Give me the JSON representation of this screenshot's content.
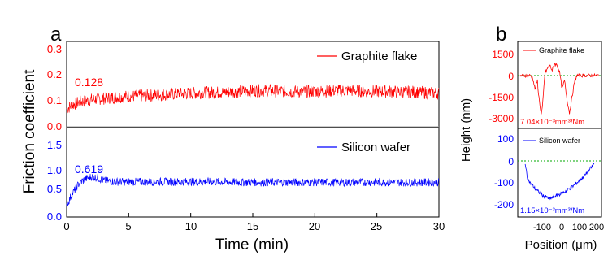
{
  "panel_a": {
    "letter": "a",
    "ylabel": "Friction coefficient",
    "xlabel": "Time (min)",
    "x_ticks": [
      "0",
      "5",
      "10",
      "15",
      "20",
      "25",
      "30"
    ],
    "top": {
      "y_ticks": [
        "0.0",
        "0.1",
        "0.2",
        "0.3"
      ],
      "legend": "Graphite flake",
      "annotation": "0.128",
      "color": "#ff0000"
    },
    "bottom": {
      "y_ticks": [
        "0.0",
        "0.5",
        "1.0",
        "1.5"
      ],
      "legend": "Silicon wafer",
      "annotation": "0.619",
      "color": "#0000ff"
    }
  },
  "panel_b": {
    "letter": "b",
    "ylabel": "Height (nm)",
    "xlabel": "Position (μm)",
    "x_ticks": [
      "-100",
      "0",
      "100",
      "200"
    ],
    "top": {
      "y_ticks": [
        "1500",
        "0",
        "-1500",
        "-3000"
      ],
      "legend": "Graphite flake",
      "annotation": "7.04×10⁻³mm³/Nm",
      "color": "#ff0000"
    },
    "bottom": {
      "y_ticks": [
        "100",
        "0",
        "-100",
        "-200"
      ],
      "legend": "Silicon wafer",
      "annotation": "1.15×10⁻³mm³/Nm",
      "color": "#0000ff"
    }
  },
  "chart_data": [
    {
      "type": "line",
      "panel": "a-top",
      "xlabel": "Time (min)",
      "ylabel": "Friction coefficient",
      "xlim": [
        0,
        30
      ],
      "ylim": [
        0,
        0.33
      ],
      "series": [
        {
          "name": "Graphite flake",
          "x": [
            0,
            0.5,
            1,
            1.5,
            2,
            3,
            4,
            5,
            6,
            7,
            8,
            9,
            10,
            11,
            12,
            13,
            14,
            15,
            16,
            17,
            18,
            19,
            20,
            21,
            22,
            23,
            24,
            25,
            26,
            27,
            28,
            29,
            30
          ],
          "y": [
            0.07,
            0.085,
            0.095,
            0.1,
            0.105,
            0.11,
            0.115,
            0.118,
            0.12,
            0.122,
            0.125,
            0.127,
            0.13,
            0.132,
            0.133,
            0.135,
            0.137,
            0.14,
            0.14,
            0.138,
            0.137,
            0.136,
            0.137,
            0.138,
            0.14,
            0.14,
            0.138,
            0.137,
            0.137,
            0.135,
            0.135,
            0.132,
            0.13
          ]
        }
      ],
      "annotation_value": 0.128
    },
    {
      "type": "line",
      "panel": "a-bottom",
      "xlabel": "Time (min)",
      "ylabel": "Friction coefficient",
      "xlim": [
        0,
        30
      ],
      "ylim": [
        0,
        1.6
      ],
      "series": [
        {
          "name": "Silicon wafer",
          "x": [
            0,
            0.3,
            0.7,
            1,
            1.5,
            2,
            2.5,
            3,
            4,
            5,
            6,
            8,
            10,
            12,
            14,
            16,
            18,
            20,
            22,
            24,
            26,
            28,
            30
          ],
          "y": [
            0.2,
            0.35,
            0.5,
            0.6,
            0.68,
            0.72,
            0.7,
            0.65,
            0.63,
            0.63,
            0.63,
            0.63,
            0.63,
            0.63,
            0.62,
            0.62,
            0.62,
            0.62,
            0.62,
            0.62,
            0.62,
            0.62,
            0.62
          ]
        }
      ],
      "annotation_value": 0.619
    },
    {
      "type": "line",
      "panel": "b-top",
      "xlabel": "Position (μm)",
      "ylabel": "Height (nm)",
      "xlim": [
        -130,
        210
      ],
      "ylim": [
        -3100,
        2000
      ],
      "series": [
        {
          "name": "Graphite flake",
          "x": [
            -120,
            -100,
            -80,
            -70,
            -60,
            -50,
            -45,
            -40,
            -35,
            -30,
            -25,
            -20,
            -10,
            0,
            10,
            20,
            30,
            40,
            50,
            60,
            70,
            80,
            90,
            100,
            110,
            120,
            130,
            150,
            170,
            190,
            200
          ],
          "y": [
            0,
            0,
            0,
            -100,
            -800,
            -300,
            -1200,
            -1700,
            -2300,
            -1900,
            -900,
            100,
            400,
            600,
            300,
            700,
            600,
            200,
            -800,
            -300,
            -1400,
            -2200,
            -1300,
            -400,
            0,
            0,
            0,
            0,
            0,
            0,
            0
          ]
        }
      ],
      "annotation_value": "7.04×10⁻³mm³/Nm"
    },
    {
      "type": "line",
      "panel": "b-bottom",
      "xlabel": "Position (μm)",
      "ylabel": "Height (nm)",
      "xlim": [
        -130,
        210
      ],
      "ylim": [
        -240,
        150
      ],
      "series": [
        {
          "name": "Silicon wafer",
          "x": [
            -100,
            -95,
            -90,
            -80,
            -70,
            -60,
            -50,
            -40,
            -30,
            -20,
            -10,
            0,
            10,
            20,
            40,
            60,
            80,
            100,
            120,
            140,
            160,
            180
          ],
          "y": [
            0,
            -40,
            -70,
            -90,
            -100,
            -115,
            -125,
            -135,
            -145,
            -150,
            -155,
            -160,
            -155,
            -150,
            -140,
            -130,
            -115,
            -100,
            -80,
            -60,
            -35,
            -5
          ]
        }
      ],
      "annotation_value": "1.15×10⁻³mm³/Nm"
    }
  ]
}
